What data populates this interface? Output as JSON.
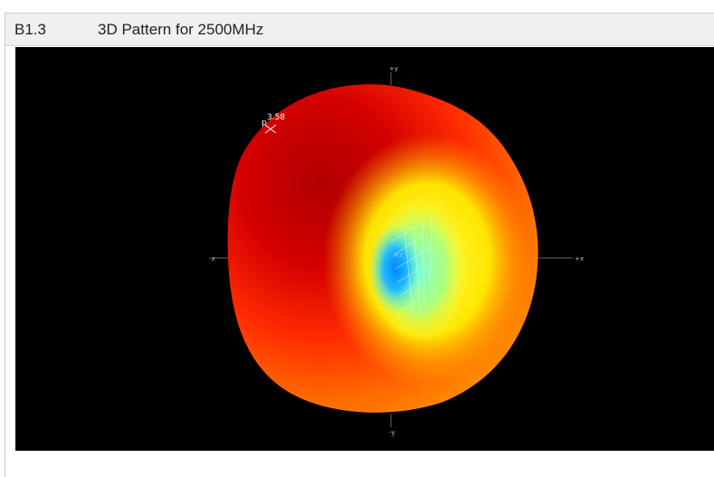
{
  "header": {
    "section_id": "B1.3",
    "title": "3D Pattern for 2500MHz"
  },
  "viewport": {
    "background": "#000000",
    "axes": {
      "plus_y": "+y",
      "minus_y": "-y",
      "plus_x": "+x",
      "minus_x": "-x",
      "center": "+z"
    },
    "max_marker": {
      "value": "3.58",
      "prefix": "p"
    },
    "colors": {
      "high": "#b30000",
      "mid_high": "#ff2a00",
      "mid": "#ff9a00",
      "low_mid": "#ffff33",
      "low": "#66ffcc",
      "min": "#0099ff"
    }
  }
}
